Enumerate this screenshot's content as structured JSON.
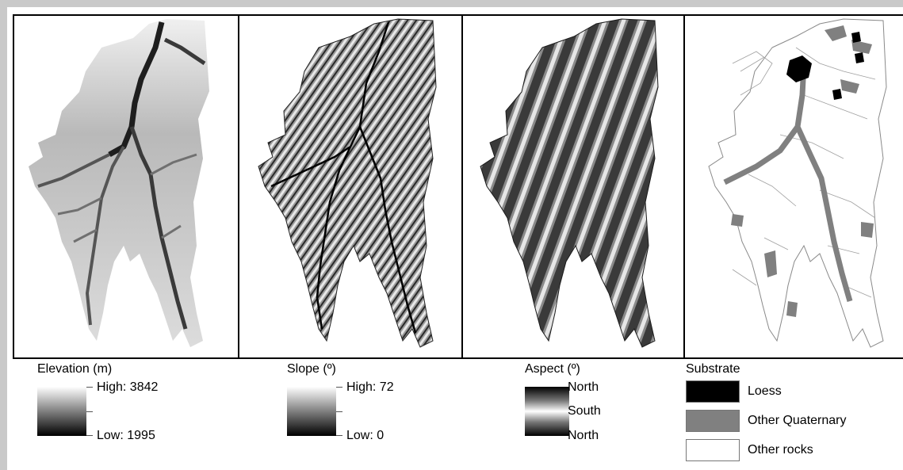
{
  "panels": [
    {
      "id": "elevation"
    },
    {
      "id": "slope"
    },
    {
      "id": "aspect"
    },
    {
      "id": "substrate"
    }
  ],
  "legend": {
    "elevation": {
      "title": "Elevation (m)",
      "high": "High: 3842",
      "low": "Low: 1995"
    },
    "slope": {
      "title": "Slope (º)",
      "high": "High: 72",
      "low": "Low: 0"
    },
    "aspect": {
      "title": "Aspect (º)",
      "top": "North",
      "middle": "South",
      "bottom": "North"
    },
    "substrate": {
      "title": "Substrate",
      "classes": [
        {
          "label": "Loess",
          "color": "#000000"
        },
        {
          "label": "Other Quaternary",
          "color": "#808080"
        },
        {
          "label": "Other rocks",
          "color": "#ffffff"
        }
      ]
    }
  },
  "colors": {
    "frame": "#c9c9c9",
    "border": "#000000"
  }
}
